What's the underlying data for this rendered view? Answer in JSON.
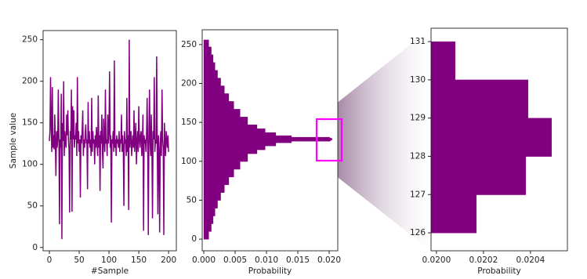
{
  "chart_data": [
    {
      "type": "line",
      "xlabel": "#Sample",
      "ylabel": "Sample value",
      "series": [
        {
          "color": "#800080",
          "values": [
            128,
            140,
            205,
            150,
            115,
            193,
            120,
            135,
            118,
            160,
            125,
            86,
            140,
            120,
            130,
            190,
            135,
            28,
            130,
            120,
            185,
            10,
            150,
            128,
            200,
            110,
            140,
            125,
            120,
            160,
            135,
            165,
            130,
            118,
            42,
            140,
            130,
            190,
            43,
            170,
            130,
            165,
            120,
            135,
            130,
            150,
            110,
            205,
            125,
            140,
            115,
            130,
            60,
            135,
            125,
            140,
            165,
            110,
            130,
            120,
            135,
            148,
            125,
            130,
            70,
            175,
            125,
            140,
            120,
            130,
            110,
            180,
            115,
            140,
            125,
            130,
            100,
            135,
            120,
            145,
            125,
            110,
            183,
            120,
            135,
            68,
            140,
            125,
            160,
            115,
            95,
            155,
            130,
            115,
            190,
            125,
            130,
            110,
            160,
            125,
            140,
            212,
            120,
            135,
            30,
            130,
            125,
            140,
            115,
            225,
            120,
            130,
            110,
            135,
            125,
            130,
            120,
            140,
            115,
            130,
            125,
            160,
            115,
            135,
            120,
            50,
            140,
            125,
            130,
            110,
            180,
            115,
            135,
            45,
            250,
            120,
            130,
            140,
            110,
            125,
            135,
            120,
            165,
            115,
            130,
            150,
            100,
            125,
            140,
            115,
            170,
            130,
            120,
            135,
            140,
            110,
            125,
            160,
            20,
            135,
            125,
            130,
            115,
            135,
            180,
            120,
            15,
            140,
            190,
            125,
            110,
            160,
            120,
            35,
            140,
            130,
            205,
            115,
            130,
            125,
            230,
            120,
            40,
            135,
            115,
            18,
            125,
            140,
            110,
            190,
            130,
            120,
            15,
            150,
            125,
            110,
            140,
            130,
            120,
            135,
            115
          ]
        }
      ],
      "xlim": [
        -10.5,
        213
      ],
      "xticks": [
        0,
        50,
        100,
        150,
        200
      ],
      "ylim": [
        -4,
        261
      ],
      "yticks": [
        0,
        50,
        100,
        150,
        200,
        250
      ]
    },
    {
      "type": "histogram",
      "orientation": "horizontal",
      "xlabel": "Probability",
      "color": "#800080",
      "bins": [
        0,
        10,
        20,
        30,
        40,
        50,
        60,
        70,
        80,
        90,
        100,
        110,
        115,
        120,
        124,
        126,
        127,
        128,
        129,
        130,
        131,
        133,
        137,
        142,
        147,
        157,
        167,
        177,
        187,
        197,
        207,
        217,
        227,
        237,
        247,
        256
      ],
      "counts": [
        0.0008,
        0.0012,
        0.0015,
        0.0018,
        0.0022,
        0.0027,
        0.0033,
        0.004,
        0.0048,
        0.0058,
        0.007,
        0.0085,
        0.0098,
        0.0115,
        0.014,
        0.02017,
        0.02038,
        0.02049,
        0.02039,
        0.02008,
        0.014,
        0.0115,
        0.0098,
        0.0085,
        0.007,
        0.0058,
        0.0048,
        0.004,
        0.0033,
        0.0027,
        0.0022,
        0.0018,
        0.0015,
        0.0012,
        0.0008
      ],
      "xlim": [
        -0.00025,
        0.021375
      ],
      "xticks": [
        {
          "value": 0,
          "label": "0.000"
        },
        {
          "value": 0.005,
          "label": "0.005"
        },
        {
          "value": 0.01,
          "label": "0.010"
        },
        {
          "value": 0.015,
          "label": "0.015"
        },
        {
          "value": 0.02,
          "label": "0.020"
        }
      ],
      "ylim": [
        -15,
        269
      ],
      "yticks": [
        0,
        50,
        100,
        150,
        200,
        250
      ]
    },
    {
      "type": "histogram",
      "orientation": "horizontal",
      "xlabel": "Probability",
      "color": "#800080",
      "bins": [
        126,
        127,
        128,
        129,
        130,
        131
      ],
      "counts": [
        0.02017,
        0.02038,
        0.02049,
        0.02039,
        0.02008
      ],
      "xlim": [
        0.019977,
        0.020557
      ],
      "xticks": [
        {
          "value": 0.02,
          "label": "0.0200"
        },
        {
          "value": 0.0202,
          "label": "0.0202"
        },
        {
          "value": 0.0204,
          "label": "0.0204"
        }
      ],
      "ylim": [
        125.53,
        131.35
      ],
      "yticks": [
        126,
        127,
        128,
        129,
        130,
        131
      ]
    }
  ]
}
